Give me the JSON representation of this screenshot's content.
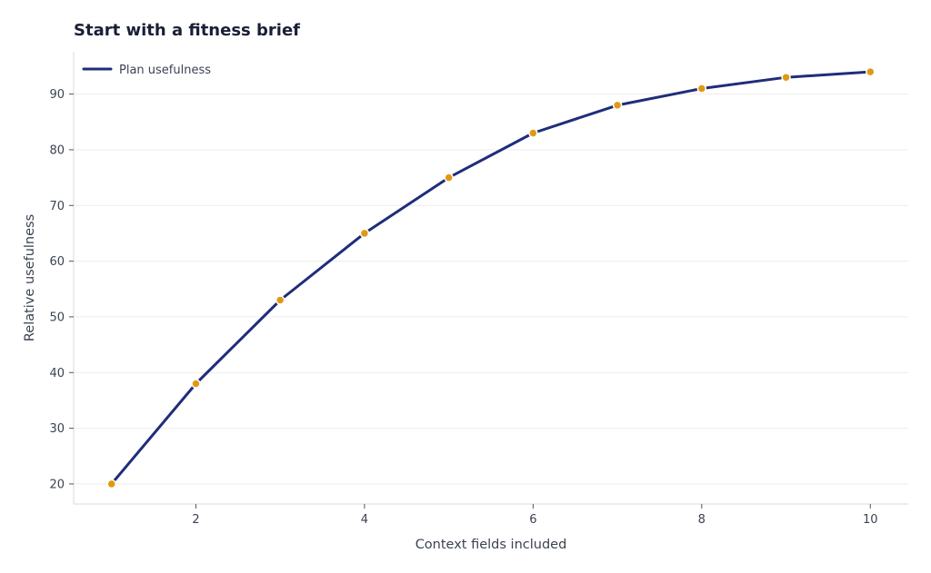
{
  "chart_data": {
    "type": "line",
    "title": "Start with a fitness brief",
    "xlabel": "Context fields included",
    "ylabel": "Relative usefulness",
    "xlim": [
      0.55,
      10.45
    ],
    "ylim": [
      16.4,
      97.6
    ],
    "xticks": [
      2,
      4,
      6,
      8,
      10
    ],
    "yticks": [
      20,
      30,
      40,
      50,
      60,
      70,
      80,
      90
    ],
    "grid": "horizontal",
    "legend_position": "top-left",
    "series": [
      {
        "name": "Plan usefulness",
        "x": [
          1,
          2,
          3,
          4,
          5,
          6,
          7,
          8,
          9,
          10
        ],
        "y": [
          20,
          38,
          53,
          65,
          75,
          83,
          88,
          91,
          93,
          94
        ],
        "line_color": "#1f2d7a",
        "marker_color": "#e09a12"
      }
    ]
  }
}
